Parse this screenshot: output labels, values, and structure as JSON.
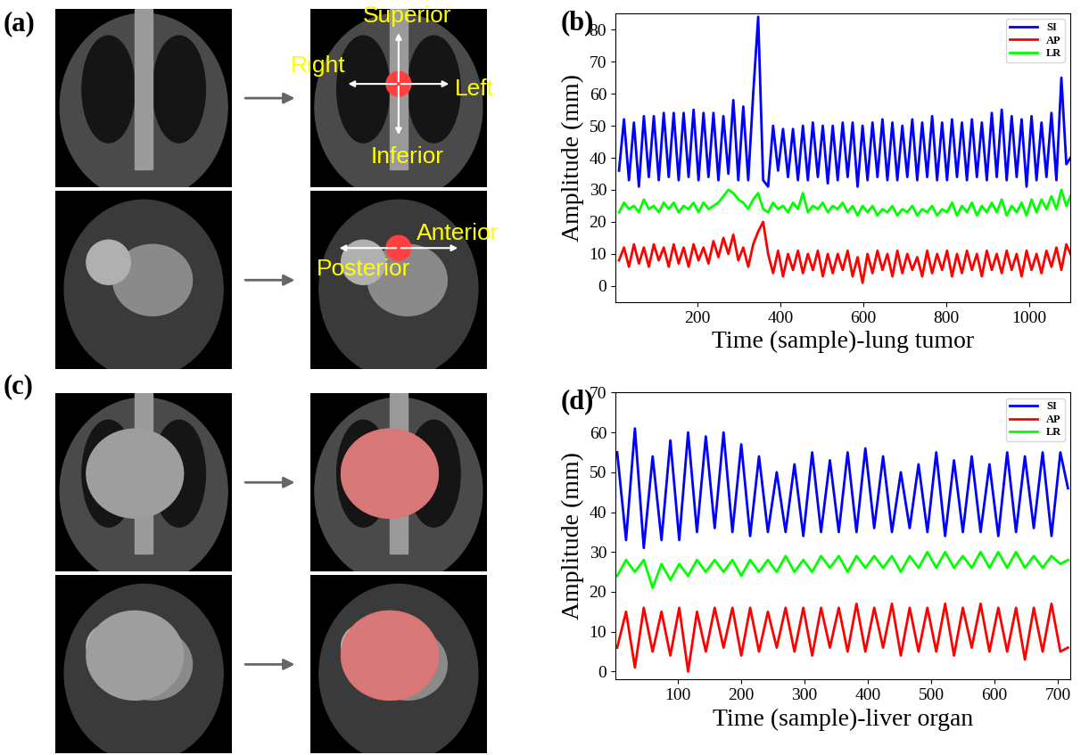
{
  "chart_data": [
    {
      "type": "line",
      "title": "(b)",
      "xlabel": "Time (sample)-lung tumor",
      "ylabel": "Amplitude (mm)",
      "xlim": [
        1,
        1100
      ],
      "xticks": [
        200,
        400,
        600,
        800,
        1000
      ],
      "ylim": [
        -5,
        85
      ],
      "yticks": [
        0,
        10,
        20,
        30,
        40,
        50,
        60,
        70,
        80
      ],
      "legend": "upper right",
      "x": [
        10,
        22,
        34,
        46,
        58,
        70,
        82,
        94,
        106,
        118,
        130,
        142,
        154,
        166,
        178,
        190,
        202,
        214,
        226,
        238,
        250,
        262,
        274,
        286,
        298,
        310,
        322,
        334,
        346,
        358,
        370,
        382,
        394,
        406,
        418,
        430,
        442,
        454,
        466,
        478,
        490,
        502,
        514,
        526,
        538,
        550,
        562,
        574,
        586,
        598,
        610,
        622,
        634,
        646,
        658,
        670,
        682,
        694,
        706,
        718,
        730,
        742,
        754,
        766,
        778,
        790,
        802,
        814,
        826,
        838,
        850,
        862,
        874,
        886,
        898,
        910,
        922,
        934,
        946,
        958,
        970,
        982,
        994,
        1006,
        1018,
        1030,
        1042,
        1054,
        1066,
        1078,
        1090,
        1100
      ],
      "series": [
        {
          "name": "SI",
          "color": "#0000ff",
          "values": [
            36,
            52,
            33,
            51,
            31,
            53,
            34,
            53,
            33,
            54,
            34,
            54,
            33,
            54,
            34,
            55,
            33,
            54,
            34,
            54,
            33,
            53,
            35,
            58,
            33,
            56,
            33,
            60,
            84,
            33,
            31,
            50,
            36,
            49,
            34,
            49,
            33,
            50,
            33,
            51,
            34,
            50,
            32,
            50,
            33,
            51,
            34,
            51,
            31,
            50,
            33,
            51,
            34,
            52,
            33,
            51,
            33,
            50,
            34,
            52,
            33,
            51,
            34,
            53,
            33,
            51,
            33,
            52,
            34,
            51,
            33,
            52,
            34,
            51,
            33,
            54,
            34,
            55,
            33,
            53,
            34,
            52,
            31,
            53,
            33,
            51,
            34,
            54,
            33,
            65,
            38,
            40
          ]
        },
        {
          "name": "AP",
          "color": "#ff0000",
          "values": [
            8,
            12,
            6,
            13,
            7,
            12,
            6,
            13,
            8,
            12,
            6,
            13,
            7,
            12,
            6,
            13,
            8,
            12,
            7,
            14,
            9,
            15,
            10,
            16,
            8,
            12,
            6,
            13,
            17,
            20,
            10,
            4,
            11,
            3,
            10,
            5,
            11,
            4,
            10,
            5,
            11,
            3,
            10,
            4,
            10,
            5,
            11,
            3,
            9,
            1,
            10,
            4,
            11,
            5,
            10,
            3,
            11,
            4,
            10,
            5,
            9,
            3,
            11,
            4,
            10,
            5,
            11,
            3,
            10,
            4,
            11,
            5,
            10,
            3,
            11,
            5,
            10,
            4,
            11,
            5,
            10,
            3,
            11,
            5,
            10,
            4,
            11,
            6,
            12,
            5,
            13,
            10
          ]
        },
        {
          "name": "LR",
          "color": "#00ff00",
          "values": [
            23,
            26,
            24,
            25,
            23,
            27,
            24,
            25,
            23,
            26,
            24,
            26,
            23,
            25,
            24,
            26,
            23,
            26,
            24,
            25,
            26,
            28,
            30,
            29,
            27,
            26,
            24,
            27,
            29,
            24,
            23,
            26,
            24,
            25,
            23,
            26,
            24,
            29,
            23,
            25,
            24,
            26,
            23,
            25,
            24,
            26,
            23,
            25,
            22,
            25,
            23,
            25,
            22,
            24,
            23,
            25,
            22,
            24,
            23,
            25,
            22,
            24,
            23,
            25,
            22,
            24,
            23,
            26,
            22,
            25,
            23,
            26,
            22,
            25,
            23,
            26,
            23,
            27,
            22,
            25,
            23,
            26,
            22,
            27,
            23,
            27,
            24,
            28,
            24,
            30,
            25,
            28
          ]
        }
      ]
    },
    {
      "type": "line",
      "title": "(d)",
      "xlabel": "Time (sample)-liver organ",
      "ylabel": "Amplitude (mm)",
      "xlim": [
        1,
        720
      ],
      "xticks": [
        100,
        200,
        300,
        400,
        500,
        600,
        700
      ],
      "ylim": [
        -2,
        70
      ],
      "yticks": [
        0,
        10,
        20,
        30,
        40,
        50,
        60,
        70
      ],
      "legend": "upper right",
      "x": [
        4,
        18,
        32,
        46,
        60,
        74,
        88,
        102,
        116,
        130,
        144,
        158,
        172,
        186,
        200,
        214,
        228,
        242,
        256,
        270,
        284,
        298,
        312,
        326,
        340,
        354,
        368,
        382,
        396,
        410,
        424,
        438,
        452,
        466,
        480,
        494,
        508,
        522,
        536,
        550,
        564,
        578,
        592,
        606,
        620,
        634,
        648,
        662,
        676,
        690,
        704,
        716
      ],
      "series": [
        {
          "name": "SI",
          "color": "#0000ff",
          "values": [
            55,
            33,
            61,
            31,
            54,
            33,
            58,
            33,
            60,
            35,
            59,
            36,
            60,
            35,
            57,
            34,
            54,
            35,
            50,
            35,
            52,
            34,
            55,
            35,
            53,
            35,
            55,
            35,
            56,
            36,
            54,
            35,
            50,
            36,
            52,
            35,
            55,
            34,
            53,
            35,
            54,
            35,
            52,
            34,
            55,
            35,
            54,
            36,
            55,
            34,
            55,
            46
          ]
        },
        {
          "name": "AP",
          "color": "#ff0000",
          "values": [
            6,
            15,
            1,
            16,
            5,
            15,
            4,
            16,
            0,
            15,
            5,
            16,
            6,
            16,
            4,
            16,
            5,
            15,
            6,
            16,
            5,
            16,
            4,
            16,
            6,
            16,
            5,
            17,
            5,
            16,
            6,
            17,
            4,
            16,
            5,
            16,
            5,
            17,
            4,
            16,
            6,
            17,
            5,
            16,
            5,
            16,
            3,
            16,
            5,
            17,
            5,
            6
          ]
        },
        {
          "name": "LR",
          "color": "#00ff00",
          "values": [
            24,
            28,
            25,
            28,
            21,
            27,
            23,
            27,
            24,
            28,
            25,
            28,
            25,
            28,
            24,
            28,
            25,
            28,
            25,
            29,
            25,
            28,
            25,
            29,
            26,
            29,
            25,
            29,
            26,
            29,
            26,
            29,
            25,
            29,
            26,
            30,
            26,
            30,
            26,
            29,
            26,
            30,
            26,
            30,
            26,
            30,
            26,
            29,
            26,
            29,
            27,
            28
          ]
        }
      ]
    }
  ],
  "image_panels": [
    {
      "label": "(a)",
      "coronal_labels": {
        "up": "Superior",
        "left": "Right",
        "right": "Left",
        "down": "Inferior"
      },
      "sagittal_labels": {
        "right": "Anterior",
        "left": "Posterior"
      }
    },
    {
      "label": "(c)"
    }
  ]
}
